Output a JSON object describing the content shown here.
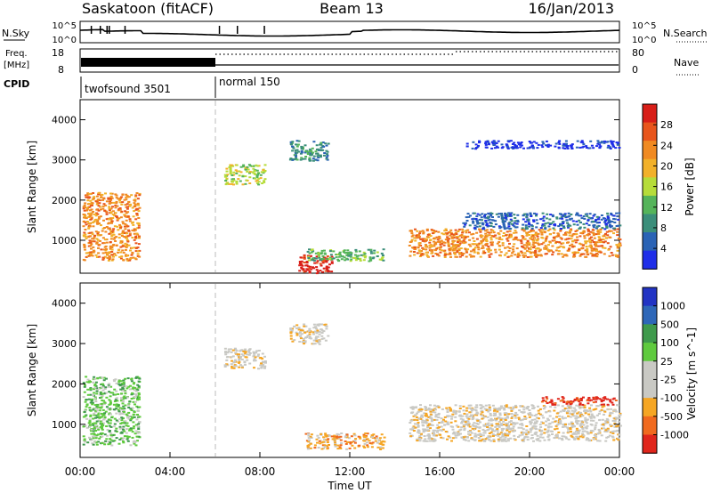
{
  "header": {
    "title": "Saskatoon (fitACF)",
    "beam": "Beam 13",
    "date": "16/Jan/2013"
  },
  "panels": {
    "nsky": {
      "left_label": "N.Sky",
      "left_ticks": [
        "10^5",
        "10^0"
      ],
      "right_ticks": [
        "10^5",
        "10^0"
      ],
      "right_label": "N.Search"
    },
    "freq": {
      "left_label_1": "Freq.",
      "left_label_2": "[MHz]",
      "left_ticks": [
        "18",
        "8"
      ],
      "right_ticks": [
        "80",
        "0"
      ],
      "right_label": "Nave"
    },
    "cpid": {
      "label": "CPID",
      "segments": [
        {
          "name": "twofsound 3501",
          "start_hour": 0,
          "end_hour": 6
        },
        {
          "name": "normal 150",
          "start_hour": 6,
          "end_hour": 24
        }
      ]
    }
  },
  "colors": {
    "power": [
      "#1f2ee8",
      "#2a63b5",
      "#3b8e7a",
      "#55b45a",
      "#b6dc3a",
      "#f2b12a",
      "#f08a22",
      "#e8551c",
      "#d81e18"
    ],
    "velocity": [
      "#e0261c",
      "#f06a1f",
      "#f5a624",
      "#c9c9c4",
      "#c9c9c4",
      "#5fca3e",
      "#3f9a4c",
      "#2e67b8",
      "#2234c4"
    ]
  },
  "chart_data": [
    {
      "type": "heatmap",
      "name": "power",
      "ylabel": "Slant Range [km]",
      "colorbar_label": "Power [dB]",
      "colorbar_ticks": [
        "28",
        "24",
        "20",
        "16",
        "12",
        "8",
        "4"
      ],
      "ylim": [
        180,
        4500
      ],
      "yticks": [
        "4000",
        "3000",
        "2000",
        "1000"
      ],
      "xlim": [
        0,
        24
      ],
      "echo_regions": [
        {
          "t0": 0.1,
          "t1": 2.6,
          "r0": 500,
          "r1": 2200,
          "level": 6
        },
        {
          "t0": 6.4,
          "t1": 8.2,
          "r0": 2400,
          "r1": 2900,
          "level": 4
        },
        {
          "t0": 9.3,
          "t1": 11.0,
          "r0": 3000,
          "r1": 3500,
          "level": 2
        },
        {
          "t0": 9.7,
          "t1": 11.2,
          "r0": 200,
          "r1": 650,
          "level": 8
        },
        {
          "t0": 10.0,
          "t1": 13.5,
          "r0": 500,
          "r1": 800,
          "level": 3
        },
        {
          "t0": 14.6,
          "t1": 24.0,
          "r0": 600,
          "r1": 1300,
          "level": 6
        },
        {
          "t0": 17.0,
          "t1": 24.0,
          "r0": 1300,
          "r1": 1700,
          "level": 1
        },
        {
          "t0": 17.0,
          "t1": 24.0,
          "r0": 3300,
          "r1": 3500,
          "level": 0
        }
      ]
    },
    {
      "type": "heatmap",
      "name": "velocity",
      "xlabel": "Time UT",
      "ylabel": "Slant Range [km]",
      "colorbar_label": "Velocity [m s^-1]",
      "colorbar_ticks": [
        "1000",
        "500",
        "100",
        "25",
        "-25",
        "-100",
        "-500",
        "-1000"
      ],
      "ylim": [
        180,
        4500
      ],
      "yticks": [
        "4000",
        "3000",
        "2000",
        "1000"
      ],
      "xlim": [
        0,
        24
      ],
      "xticks": [
        "00:00",
        "04:00",
        "08:00",
        "12:00",
        "16:00",
        "20:00",
        "00:00"
      ],
      "echo_regions": [
        {
          "t0": 0.1,
          "t1": 2.6,
          "r0": 500,
          "r1": 2200,
          "level": 5
        },
        {
          "t0": 6.4,
          "t1": 8.2,
          "r0": 2400,
          "r1": 2900,
          "level": 3
        },
        {
          "t0": 9.3,
          "t1": 11.0,
          "r0": 3000,
          "r1": 3500,
          "level": 3
        },
        {
          "t0": 10.0,
          "t1": 13.5,
          "r0": 400,
          "r1": 800,
          "level": 2
        },
        {
          "t0": 14.6,
          "t1": 24.0,
          "r0": 600,
          "r1": 1500,
          "level": 3
        },
        {
          "t0": 20.5,
          "t1": 23.8,
          "r0": 1500,
          "r1": 1700,
          "level": 0
        }
      ]
    }
  ]
}
